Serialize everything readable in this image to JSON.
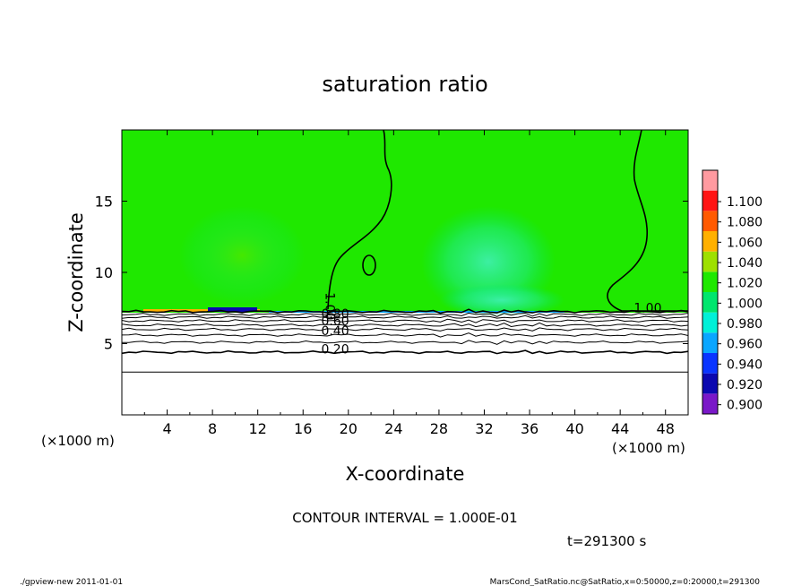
{
  "chart_data": {
    "type": "contour",
    "title": "saturation ratio",
    "xlabel": "X-coordinate",
    "ylabel": "Z-coordinate",
    "x_unit_left": "(×1000 m)",
    "x_unit_right": "(×1000 m)",
    "xlim": [
      0,
      50
    ],
    "ylim": [
      0,
      20
    ],
    "xticks": [
      4,
      8,
      12,
      16,
      20,
      24,
      28,
      32,
      36,
      40,
      44,
      48
    ],
    "xtick_labels": [
      "4",
      "8",
      "12",
      "16",
      "20",
      "24",
      "28",
      "32",
      "36",
      "40",
      "44",
      "48"
    ],
    "yticks": [
      5,
      10,
      15
    ],
    "ytick_labels": [
      "5",
      "10",
      "15"
    ],
    "contour_interval_text": "CONTOUR INTERVAL = 1.000E-01",
    "time_text": "t=291300 s",
    "contour_levels": [
      0.1,
      0.2,
      0.3,
      0.4,
      0.5,
      0.6,
      0.7,
      0.8,
      0.9,
      1.0
    ],
    "contour_labels": [
      {
        "text": "0.20",
        "x": 17.6,
        "z": 4.3
      },
      {
        "text": "0.40",
        "x": 17.6,
        "z": 5.6
      },
      {
        "text": "0.60",
        "x": 17.6,
        "z": 6.3
      },
      {
        "text": "0.80",
        "x": 17.6,
        "z": 6.8
      },
      {
        "text": "1.00",
        "x": 18.0,
        "z": 8.6
      },
      {
        "text": "1.00",
        "x": 45.2,
        "z": 7.2
      }
    ],
    "contour_heights": [
      {
        "level": 0.1,
        "z": 3.0
      },
      {
        "level": 0.2,
        "z": 4.4
      },
      {
        "level": 0.3,
        "z": 5.1
      },
      {
        "level": 0.4,
        "z": 5.6
      },
      {
        "level": 0.5,
        "z": 6.0
      },
      {
        "level": 0.6,
        "z": 6.3
      },
      {
        "level": 0.7,
        "z": 6.6
      },
      {
        "level": 0.8,
        "z": 6.85
      },
      {
        "level": 0.9,
        "z": 7.05
      },
      {
        "level": 1.0,
        "z": 7.25
      }
    ],
    "colorbar": {
      "levels": [
        0.9,
        0.92,
        0.94,
        0.96,
        0.98,
        1.0,
        1.02,
        1.04,
        1.06,
        1.08,
        1.1
      ],
      "labels": [
        "0.900",
        "0.920",
        "0.940",
        "0.960",
        "0.980",
        "1.000",
        "1.020",
        "1.040",
        "1.060",
        "1.080",
        "1.100"
      ],
      "colors": [
        "#7a18c8",
        "#0b08b0",
        "#0a35ff",
        "#0aa6ff",
        "#00f0d8",
        "#00e66e",
        "#1fe800",
        "#9ee000",
        "#ffb000",
        "#ff5a00",
        "#ff1414",
        "#ff9aa0"
      ]
    },
    "background_value": 1.0
  },
  "footer": {
    "left": "./gpview-new   2011-01-01",
    "right": "MarsCond_SatRatio.nc@SatRatio,x=0:50000,z=0:20000,t=291300"
  }
}
